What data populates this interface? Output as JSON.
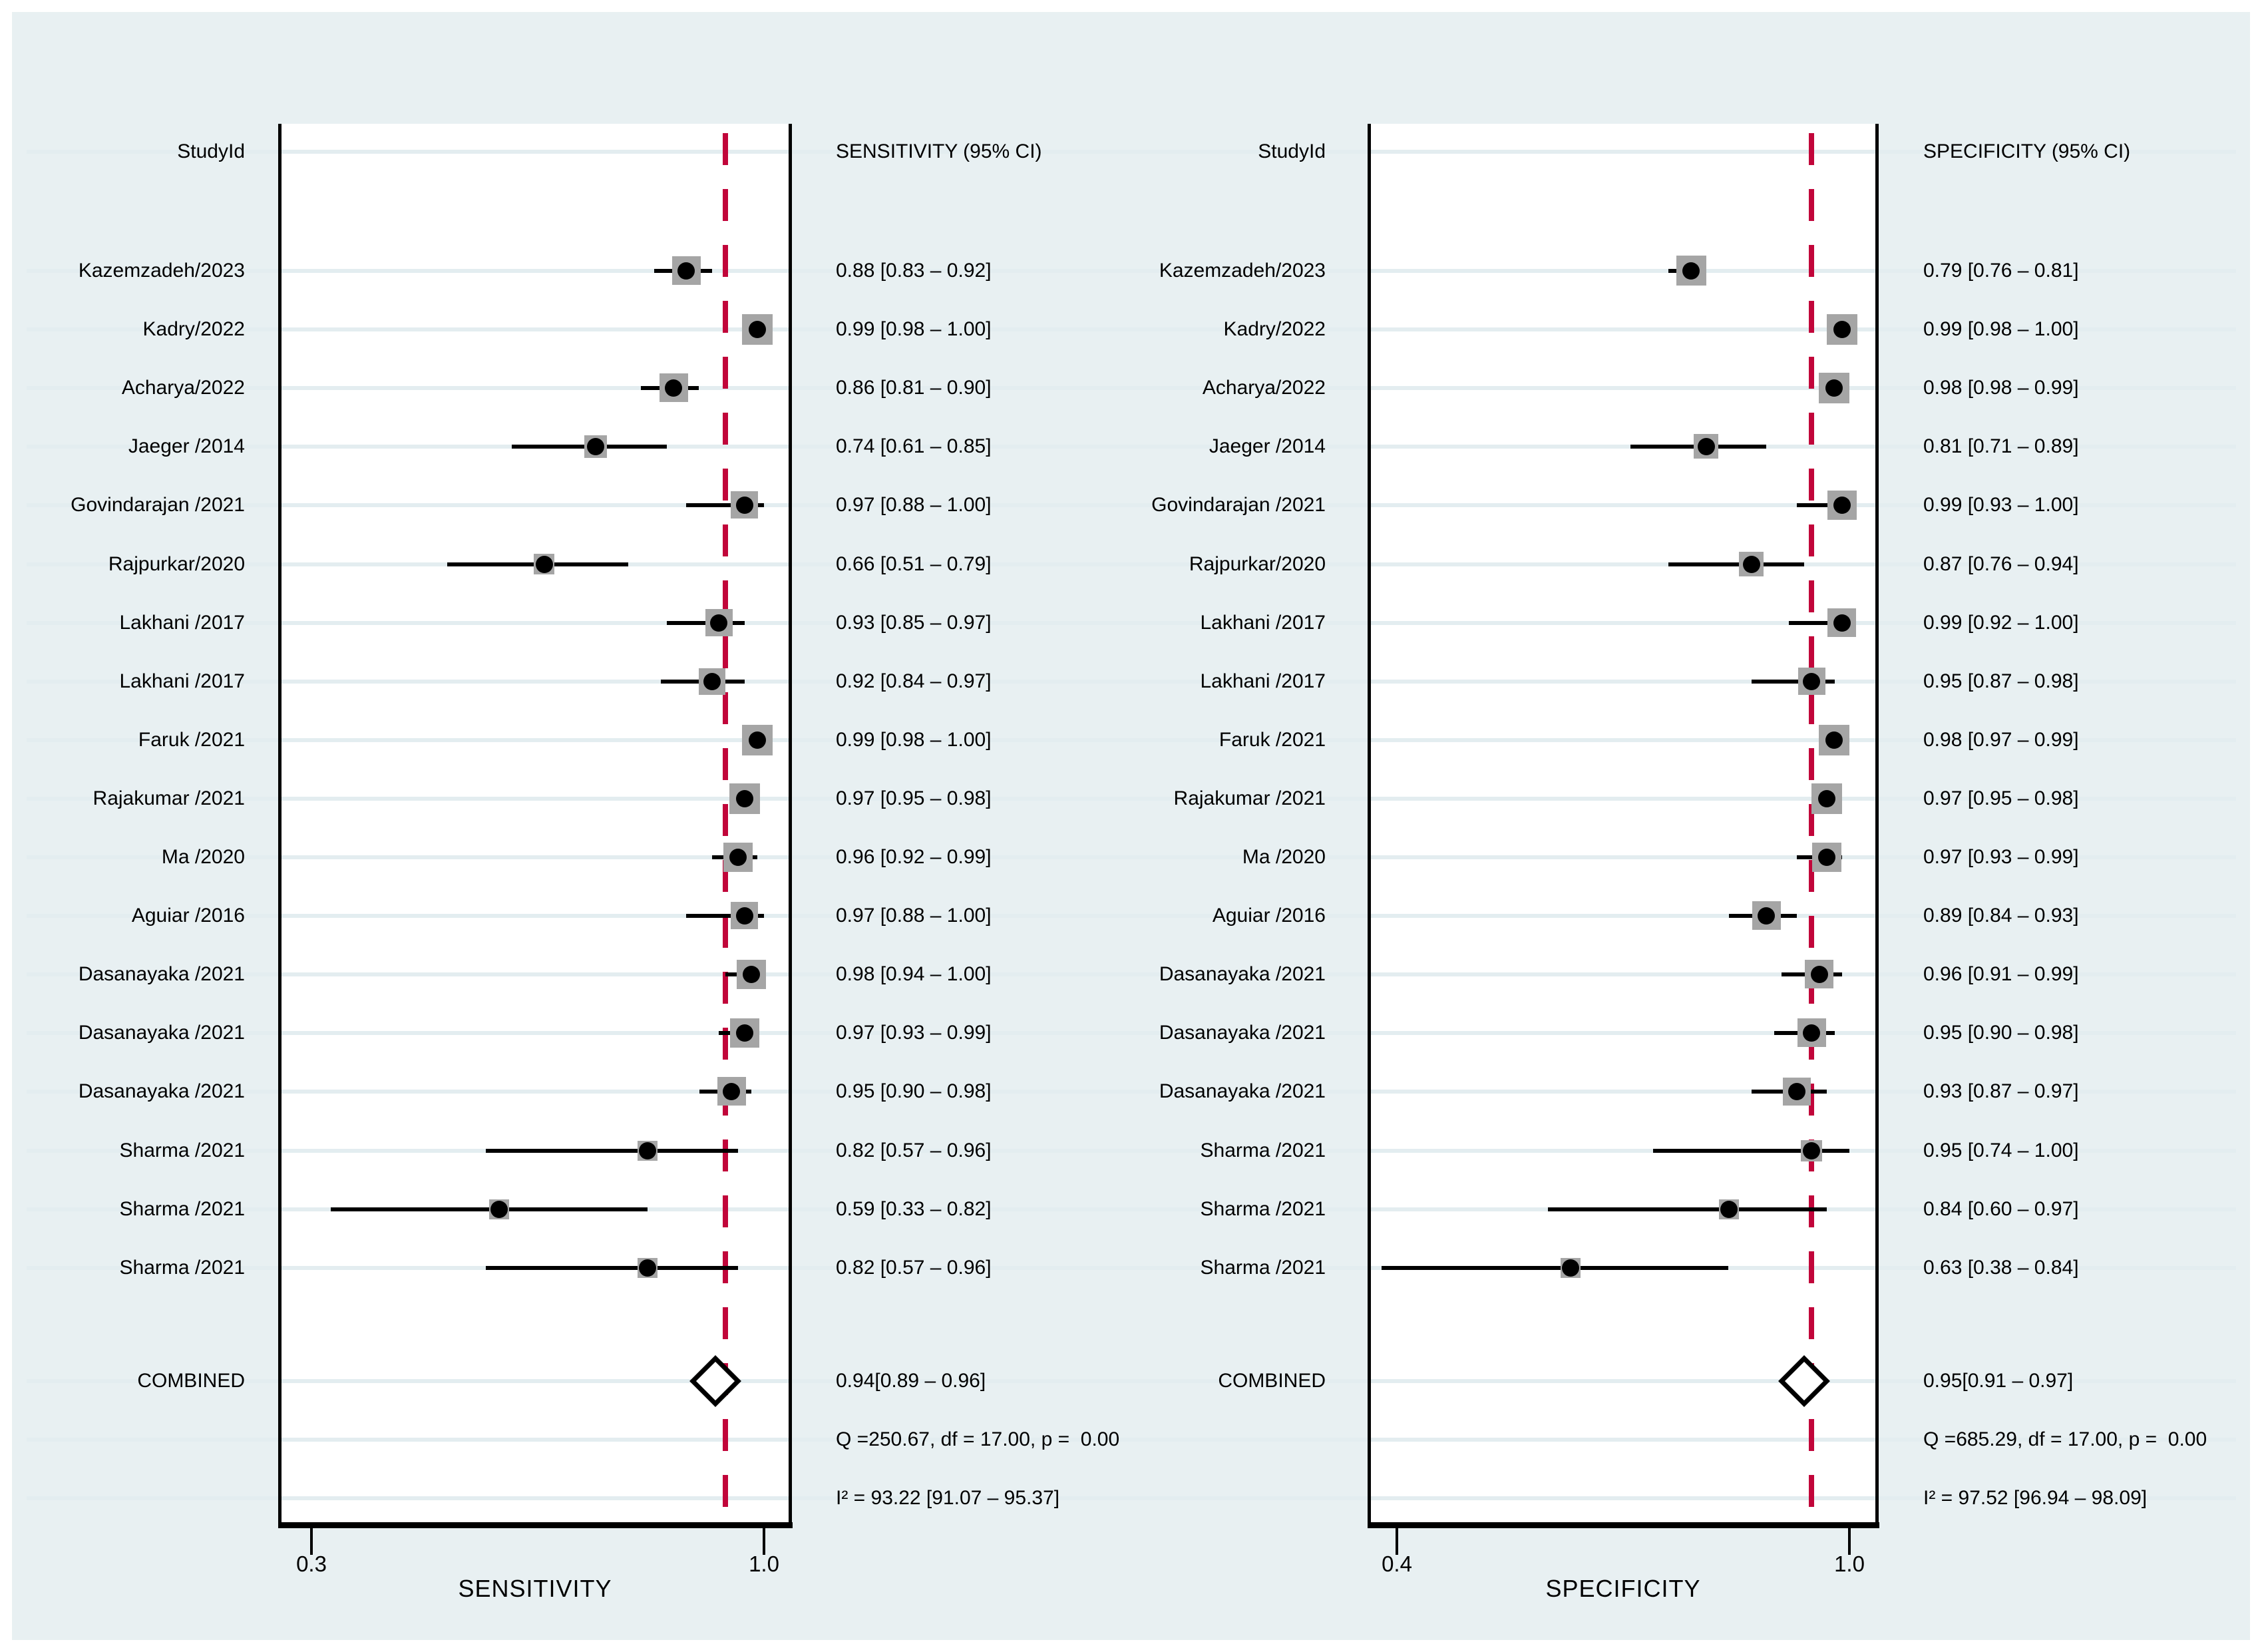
{
  "figure": {
    "colors": {
      "background": "#e8f0f2",
      "plot_background": "#ffffff",
      "reference_line_red": "#c1053a",
      "weight_square_grey": "#a5a5a5",
      "row_guide_blue": "#e3edf0",
      "frame_black": "#000000"
    },
    "study_column_header": "StudyId"
  },
  "studies": [
    "Kazemzadeh/2023",
    "Kadry/2022",
    "Acharya/2022",
    "Jaeger /2014",
    "Govindarajan /2021",
    "Rajpurkar/2020",
    "Lakhani /2017",
    "Lakhani /2017",
    "Faruk /2021",
    "Rajakumar /2021",
    "Ma /2020",
    "Aguiar /2016",
    "Dasanayaka /2021",
    "Dasanayaka /2021",
    "Dasanayaka /2021",
    "Sharma /2021",
    "Sharma /2021",
    "Sharma /2021"
  ],
  "chart_data": [
    {
      "type": "forest",
      "title": "SENSITIVITY (95% CI)",
      "xlabel": "SENSITIVITY",
      "axis": {
        "tick_values": [
          0.3,
          1.0
        ],
        "tick_labels": [
          "0.3",
          "1.0"
        ],
        "xlim": [
          0.25,
          1.04
        ],
        "grid": "row-guides"
      },
      "estimates": [
        0.88,
        0.99,
        0.86,
        0.74,
        0.97,
        0.66,
        0.93,
        0.92,
        0.99,
        0.97,
        0.96,
        0.97,
        0.98,
        0.97,
        0.95,
        0.82,
        0.59,
        0.82
      ],
      "ci_lo": [
        0.83,
        0.98,
        0.81,
        0.61,
        0.88,
        0.51,
        0.85,
        0.84,
        0.98,
        0.95,
        0.92,
        0.88,
        0.94,
        0.93,
        0.9,
        0.57,
        0.33,
        0.57
      ],
      "ci_hi": [
        0.92,
        1.0,
        0.9,
        0.85,
        1.0,
        0.79,
        0.97,
        0.97,
        1.0,
        0.98,
        0.99,
        1.0,
        1.0,
        0.99,
        0.98,
        0.96,
        0.82,
        0.96
      ],
      "ci_labels": [
        "0.88 [0.83 – 0.92]",
        "0.99 [0.98 – 1.00]",
        "0.86 [0.81 – 0.90]",
        "0.74 [0.61 – 0.85]",
        "0.97 [0.88 – 1.00]",
        "0.66 [0.51 – 0.79]",
        "0.93 [0.85 – 0.97]",
        "0.92 [0.84 – 0.97]",
        "0.99 [0.98 – 1.00]",
        "0.97 [0.95 – 0.98]",
        "0.96 [0.92 – 0.99]",
        "0.97 [0.88 – 1.00]",
        "0.98 [0.94 – 1.00]",
        "0.97 [0.93 – 0.99]",
        "0.95 [0.90 – 0.98]",
        "0.82 [0.57 – 0.96]",
        "0.59 [0.33 – 0.82]",
        "0.82 [0.57 – 0.96]"
      ],
      "combined": {
        "label": "COMBINED",
        "estimate": 0.94,
        "ci_lo": 0.89,
        "ci_hi": 0.96,
        "text": "0.94[0.89 – 0.96]"
      },
      "heterogeneity_q": "Q =250.67, df = 17.00, p =  0.00",
      "heterogeneity_i2": "I² = 93.22 [91.07 – 95.37]"
    },
    {
      "type": "forest",
      "title": "SPECIFICITY (95% CI)",
      "xlabel": "SPECIFICITY",
      "axis": {
        "tick_values": [
          0.4,
          1.0
        ],
        "tick_labels": [
          "0.4",
          "1.0"
        ],
        "xlim": [
          0.36,
          1.04
        ],
        "grid": "row-guides"
      },
      "estimates": [
        0.79,
        0.99,
        0.98,
        0.81,
        0.99,
        0.87,
        0.99,
        0.95,
        0.98,
        0.97,
        0.97,
        0.89,
        0.96,
        0.95,
        0.93,
        0.95,
        0.84,
        0.63
      ],
      "ci_lo": [
        0.76,
        0.98,
        0.98,
        0.71,
        0.93,
        0.76,
        0.92,
        0.87,
        0.97,
        0.95,
        0.93,
        0.84,
        0.91,
        0.9,
        0.87,
        0.74,
        0.6,
        0.38
      ],
      "ci_hi": [
        0.81,
        1.0,
        0.99,
        0.89,
        1.0,
        0.94,
        1.0,
        0.98,
        0.99,
        0.98,
        0.99,
        0.93,
        0.99,
        0.98,
        0.97,
        1.0,
        0.97,
        0.84
      ],
      "ci_labels": [
        "0.79 [0.76 – 0.81]",
        "0.99 [0.98 – 1.00]",
        "0.98 [0.98 – 0.99]",
        "0.81 [0.71 – 0.89]",
        "0.99 [0.93 – 1.00]",
        "0.87 [0.76 – 0.94]",
        "0.99 [0.92 – 1.00]",
        "0.95 [0.87 – 0.98]",
        "0.98 [0.97 – 0.99]",
        "0.97 [0.95 – 0.98]",
        "0.97 [0.93 – 0.99]",
        "0.89 [0.84 – 0.93]",
        "0.96 [0.91 – 0.99]",
        "0.95 [0.90 – 0.98]",
        "0.93 [0.87 – 0.97]",
        "0.95 [0.74 – 1.00]",
        "0.84 [0.60 – 0.97]",
        "0.63 [0.38 – 0.84]"
      ],
      "combined": {
        "label": "COMBINED",
        "estimate": 0.95,
        "ci_lo": 0.91,
        "ci_hi": 0.97,
        "text": "0.95[0.91 – 0.97]"
      },
      "heterogeneity_q": "Q =685.29, df = 17.00, p =  0.00",
      "heterogeneity_i2": "I² = 97.52 [96.94 – 98.09]"
    }
  ]
}
